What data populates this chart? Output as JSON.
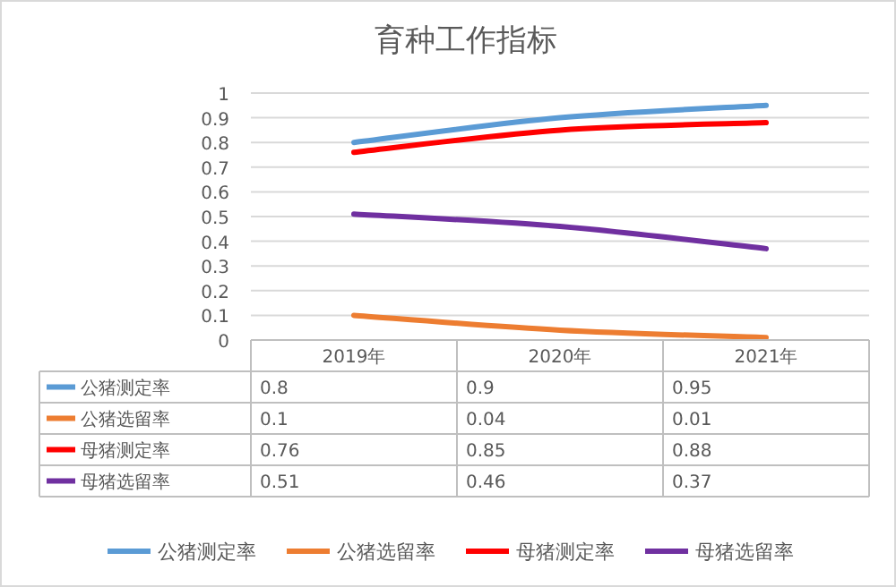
{
  "chart_data": {
    "type": "line",
    "title": "育种工作指标",
    "categories": [
      "2019年",
      "2020年",
      "2021年"
    ],
    "series": [
      {
        "name": "公猪测定率",
        "color": "#5b9bd5",
        "values": [
          0.8,
          0.9,
          0.95
        ]
      },
      {
        "name": "公猪选留率",
        "color": "#ed7d31",
        "values": [
          0.1,
          0.04,
          0.01
        ]
      },
      {
        "name": "母猪测定率",
        "color": "#ff0000",
        "values": [
          0.76,
          0.85,
          0.88
        ]
      },
      {
        "name": "母猪选留率",
        "color": "#7030a0",
        "values": [
          0.51,
          0.46,
          0.37
        ]
      }
    ],
    "ylim": [
      0,
      1
    ],
    "yticks": [
      0,
      0.1,
      0.2,
      0.3,
      0.4,
      0.5,
      0.6,
      0.7,
      0.8,
      0.9,
      1
    ],
    "grid": "y",
    "legend": "bottom",
    "data_labels": true,
    "marker": "none",
    "line_style": "solid"
  }
}
